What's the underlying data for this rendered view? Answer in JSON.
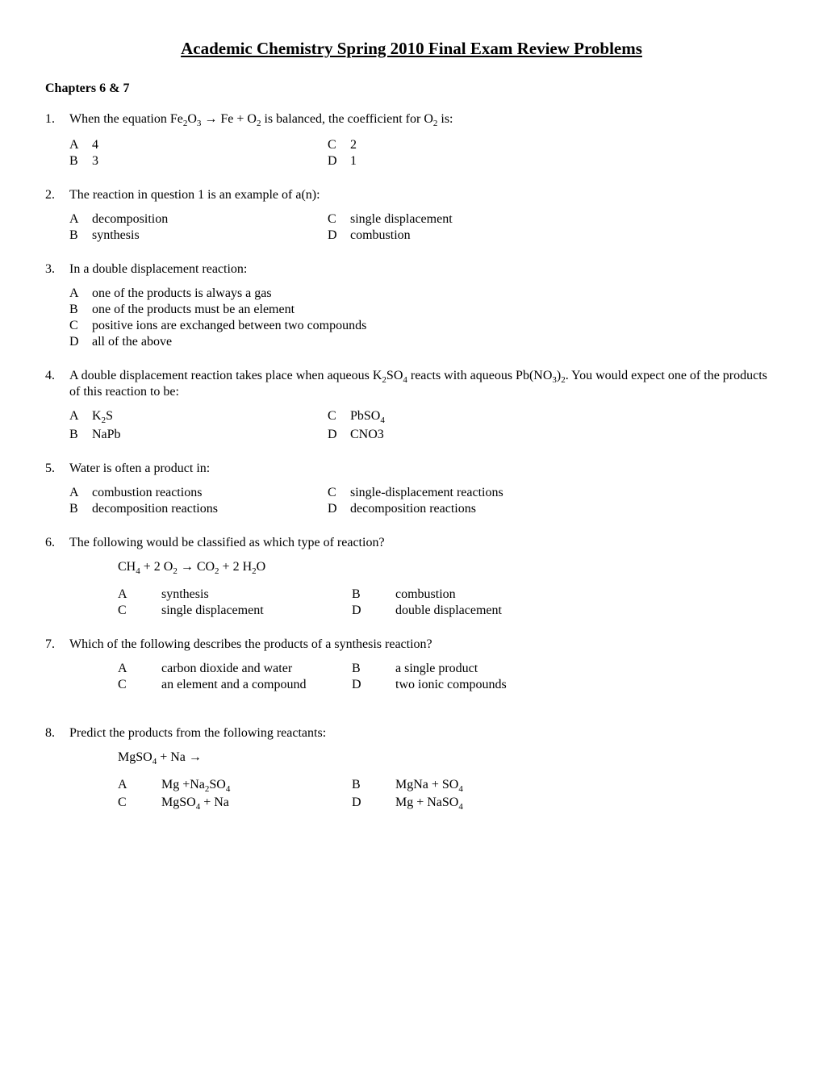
{
  "title": "Academic Chemistry Spring 2010 Final Exam Review Problems",
  "chapters_label": "Chapters 6 & 7",
  "questions": [
    {
      "num": "1.",
      "text_html": "When the equation  Fe<sub>2</sub>O<sub>3</sub> → Fe + O<sub>2</sub> is balanced, the coefficient for O<sub>2</sub> is:",
      "layout": "2col",
      "options": [
        {
          "letter": "A",
          "text_html": "4"
        },
        {
          "letter": "B",
          "text_html": "3"
        },
        {
          "letter": "C",
          "text_html": "2"
        },
        {
          "letter": "D",
          "text_html": "1"
        }
      ]
    },
    {
      "num": "2.",
      "text_html": "The reaction in question 1 is an example of a(n):",
      "layout": "2col",
      "options": [
        {
          "letter": "A",
          "text_html": "decomposition"
        },
        {
          "letter": "B",
          "text_html": "synthesis"
        },
        {
          "letter": "C",
          "text_html": "single displacement"
        },
        {
          "letter": "D",
          "text_html": "combustion"
        }
      ]
    },
    {
      "num": "3.",
      "text_html": "In a double displacement reaction:",
      "layout": "vertical",
      "options": [
        {
          "letter": "A",
          "text_html": "one of the products is always a gas"
        },
        {
          "letter": "B",
          "text_html": "one of the products must be an element"
        },
        {
          "letter": "C",
          "text_html": "positive ions are exchanged between two compounds"
        },
        {
          "letter": "D",
          "text_html": "all of the above"
        }
      ]
    },
    {
      "num": "4.",
      "text_html": "A double displacement reaction takes place when aqueous K<sub>2</sub>SO<sub>4</sub> reacts with aqueous Pb(NO<sub>3</sub>)<sub>2</sub>.  You would expect one of the products of this reaction to be:",
      "layout": "2col",
      "options": [
        {
          "letter": "A",
          "text_html": "K<sub>2</sub>S"
        },
        {
          "letter": "B",
          "text_html": "NaPb"
        },
        {
          "letter": "C",
          "text_html": "PbSO<sub>4</sub>"
        },
        {
          "letter": "D",
          "text_html": "CNO3"
        }
      ]
    },
    {
      "num": "5.",
      "text_html": "Water is often a product in:",
      "layout": "2col",
      "options": [
        {
          "letter": "A",
          "text_html": "combustion reactions"
        },
        {
          "letter": "B",
          "text_html": "decomposition reactions"
        },
        {
          "letter": "C",
          "text_html": "single-displacement reactions"
        },
        {
          "letter": "D",
          "text_html": "decomposition reactions"
        }
      ]
    },
    {
      "num": "6.",
      "text_html": "The following would be classified as which type of reaction?",
      "equation_html": "CH<sub>4</sub>  +  2 O<sub>2</sub>  →  CO<sub>2</sub>  +  2 H<sub>2</sub>O",
      "layout": "2col-wide",
      "options": [
        {
          "letter": "A",
          "text_html": "synthesis"
        },
        {
          "letter": "C",
          "text_html": "single displacement"
        },
        {
          "letter": "B",
          "text_html": "combustion"
        },
        {
          "letter": "D",
          "text_html": "double displacement"
        }
      ]
    },
    {
      "num": "7.",
      "text_html": "Which of the following describes the products of a synthesis reaction?",
      "layout": "2col-wide",
      "options": [
        {
          "letter": "A",
          "text_html": "carbon dioxide and water"
        },
        {
          "letter": "C",
          "text_html": "an element and a compound"
        },
        {
          "letter": "B",
          "text_html": "a single product"
        },
        {
          "letter": "D",
          "text_html": "two ionic compounds"
        }
      ],
      "extra_gap": true
    },
    {
      "num": "8.",
      "text_html": "Predict the products from the following reactants:",
      "equation_html": "MgSO<sub>4</sub> + Na  →",
      "layout": "2col-wide",
      "options": [
        {
          "letter": "A",
          "text_html": "Mg +Na<sub>2</sub>SO<sub>4</sub>"
        },
        {
          "letter": "C",
          "text_html": "MgSO<sub>4</sub> + Na"
        },
        {
          "letter": "B",
          "text_html": "MgNa + SO<sub>4</sub>"
        },
        {
          "letter": "D",
          "text_html": "Mg + NaSO<sub>4</sub>"
        }
      ]
    }
  ]
}
